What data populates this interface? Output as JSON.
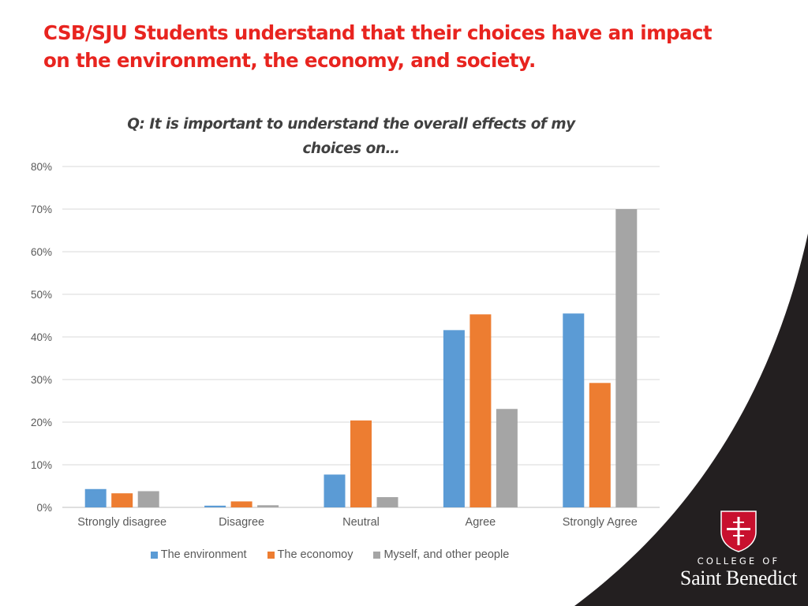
{
  "slide": {
    "title_line1": "CSB/SJU Students understand that their choices have an impact",
    "title_line2": "on the environment, the economy, and society."
  },
  "chart_data": {
    "type": "bar",
    "title_line1": "Q: It is important to understand the overall effects of my",
    "title_line2": "choices on…",
    "categories": [
      "Strongly disagree",
      "Disagree",
      "Neutral",
      "Agree",
      "Strongly Agree"
    ],
    "series": [
      {
        "name": "The environment",
        "color": "#5b9bd5",
        "values": [
          4.3,
          0.4,
          7.7,
          41.6,
          45.5
        ]
      },
      {
        "name": "The economoy",
        "color": "#ed7d31",
        "values": [
          3.3,
          1.4,
          20.4,
          45.3,
          29.2
        ]
      },
      {
        "name": "Myself, and other people",
        "color": "#a5a5a5",
        "values": [
          3.8,
          0.5,
          2.4,
          23.1,
          70.0
        ]
      }
    ],
    "ylim": [
      0,
      80
    ],
    "yticks": [
      "0%",
      "10%",
      "20%",
      "30%",
      "40%",
      "50%",
      "60%",
      "70%",
      "80%"
    ],
    "grid": true,
    "legend_position": "bottom"
  },
  "logo": {
    "line1": "COLLEGE OF",
    "line2": "Saint Benedict",
    "shield_color": "#c8102e"
  }
}
